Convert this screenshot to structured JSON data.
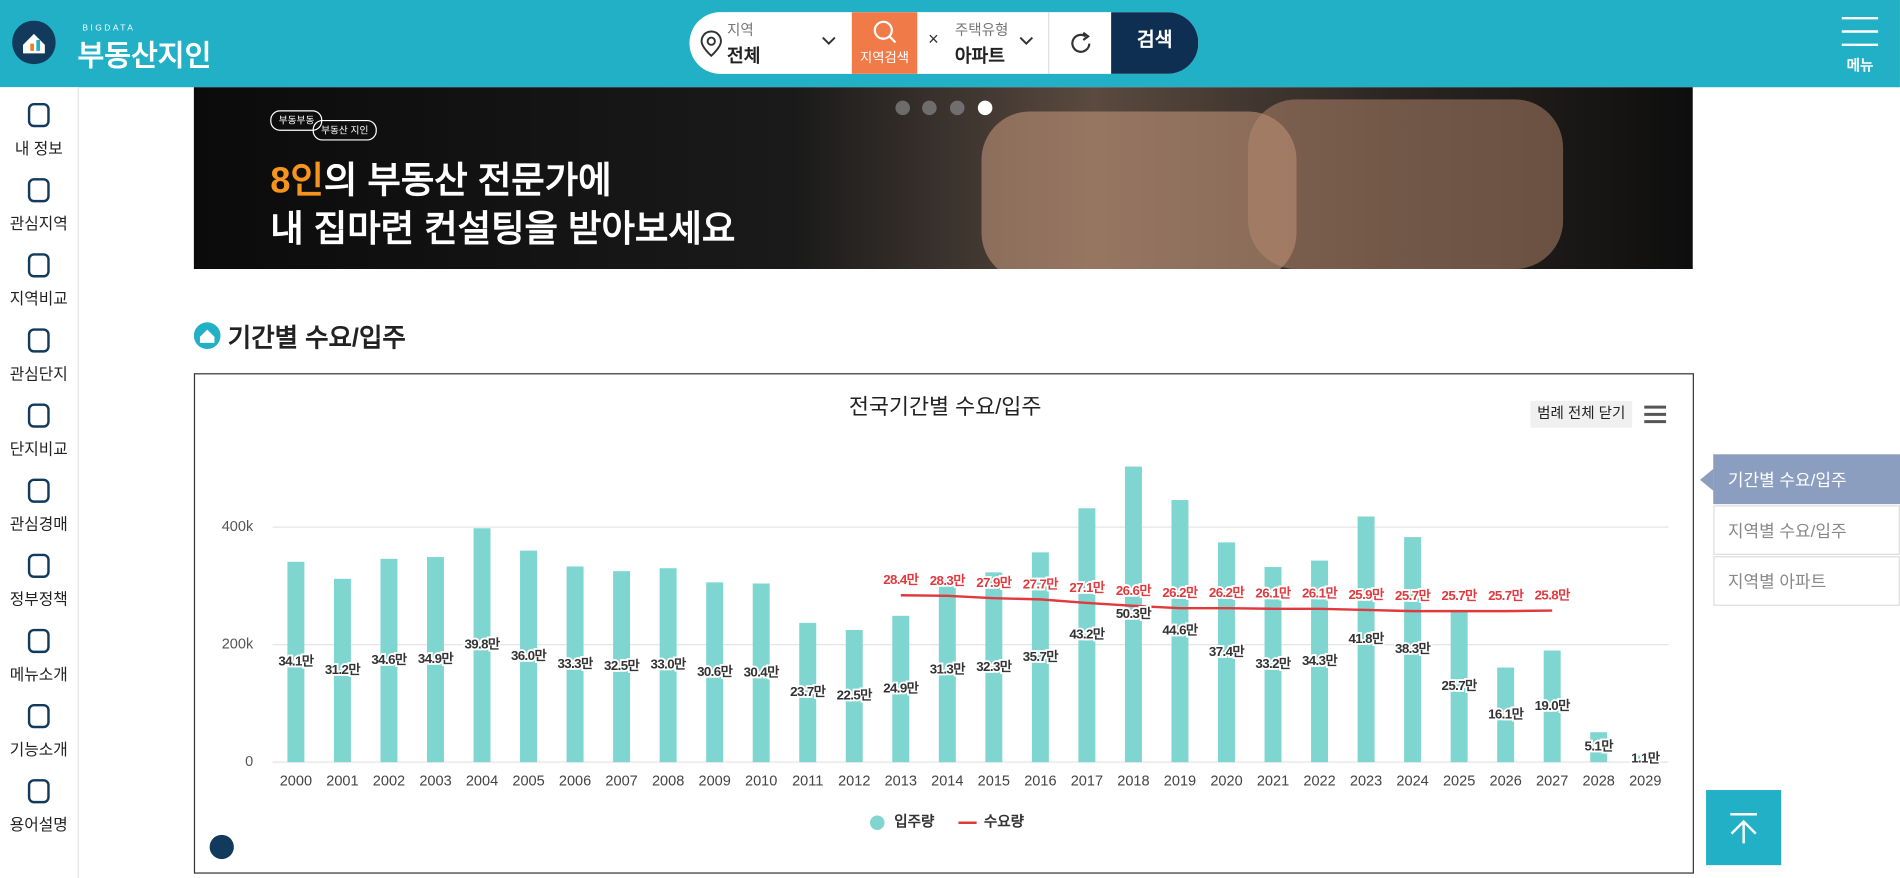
{
  "header": {
    "logo_small": "BIGDATA",
    "logo": "부동산지인",
    "region_label": "지역",
    "region_value": "전체",
    "region_search": "지역검색",
    "type_label": "주택유형",
    "type_value": "아파트",
    "search": "검색",
    "menu": "메뉴"
  },
  "sidebar": [
    "내 정보",
    "관심지역",
    "지역비교",
    "관심단지",
    "단지비교",
    "관심경매",
    "정부정책",
    "메뉴소개",
    "기능소개",
    "용어설명"
  ],
  "banner": {
    "tags": [
      "부동부동",
      "부동산 지인"
    ],
    "highlight": "8인",
    "line1": "의 부동산 전문가에",
    "line2": "내 집마련 컨설팅을 받아보세요"
  },
  "section_title": "기간별 수요/입주",
  "right_nav": [
    "기간별 수요/입주",
    "지역별 수요/입주",
    "지역별 아파트"
  ],
  "chart_data": {
    "type": "bar",
    "title": "전국기간별 수요/입주",
    "legend_toggle": "범례 전체 닫기",
    "categories": [
      "2000",
      "2001",
      "2002",
      "2003",
      "2004",
      "2005",
      "2006",
      "2007",
      "2008",
      "2009",
      "2010",
      "2011",
      "2012",
      "2013",
      "2014",
      "2015",
      "2016",
      "2017",
      "2018",
      "2019",
      "2020",
      "2021",
      "2022",
      "2023",
      "2024",
      "2025",
      "2026",
      "2027",
      "2028",
      "2029"
    ],
    "series": [
      {
        "name": "입주량",
        "type": "bar",
        "color": "#7fd6d0",
        "values": [
          341000,
          312000,
          346000,
          349000,
          398000,
          360000,
          333000,
          325000,
          330000,
          306000,
          304000,
          237000,
          225000,
          249000,
          313000,
          323000,
          357000,
          432000,
          503000,
          446000,
          374000,
          332000,
          343000,
          418000,
          383000,
          257000,
          161000,
          190000,
          51000,
          11000
        ],
        "value_labels": [
          "34.1만",
          "31.2만",
          "34.6만",
          "34.9만",
          "39.8만",
          "36.0만",
          "33.3만",
          "32.5만",
          "33.0만",
          "30.6만",
          "30.4만",
          "23.7만",
          "22.5만",
          "24.9만",
          "31.3만",
          "32.3만",
          "35.7만",
          "43.2만",
          "50.3만",
          "44.6만",
          "37.4만",
          "33.2만",
          "34.3만",
          "41.8만",
          "38.3만",
          "25.7만",
          "16.1만",
          "19.0만",
          "5.1만",
          "1.1만"
        ]
      },
      {
        "name": "수요량",
        "type": "line",
        "color": "#e0393e",
        "values": [
          null,
          null,
          null,
          null,
          null,
          null,
          null,
          null,
          null,
          null,
          null,
          null,
          null,
          284000,
          283000,
          279000,
          277000,
          271000,
          266000,
          262000,
          262000,
          261000,
          261000,
          259000,
          257000,
          257000,
          257000,
          258000,
          null,
          null
        ],
        "value_labels": [
          null,
          null,
          null,
          null,
          null,
          null,
          null,
          null,
          null,
          null,
          null,
          null,
          null,
          "28.4만",
          "28.3만",
          "27.9만",
          "27.7만",
          "27.1만",
          "26.6만",
          "26.2만",
          "26.2만",
          "26.1만",
          "26.1만",
          "25.9만",
          "25.7만",
          "25.7만",
          "25.7만",
          "25.8만",
          null,
          null
        ]
      }
    ],
    "ylim": [
      0,
      520000
    ],
    "yticks": [
      0,
      {
        "value": 200000,
        "label": "200k"
      },
      {
        "value": 400000,
        "label": "400k"
      }
    ],
    "grid": true,
    "legend": "bottom"
  }
}
